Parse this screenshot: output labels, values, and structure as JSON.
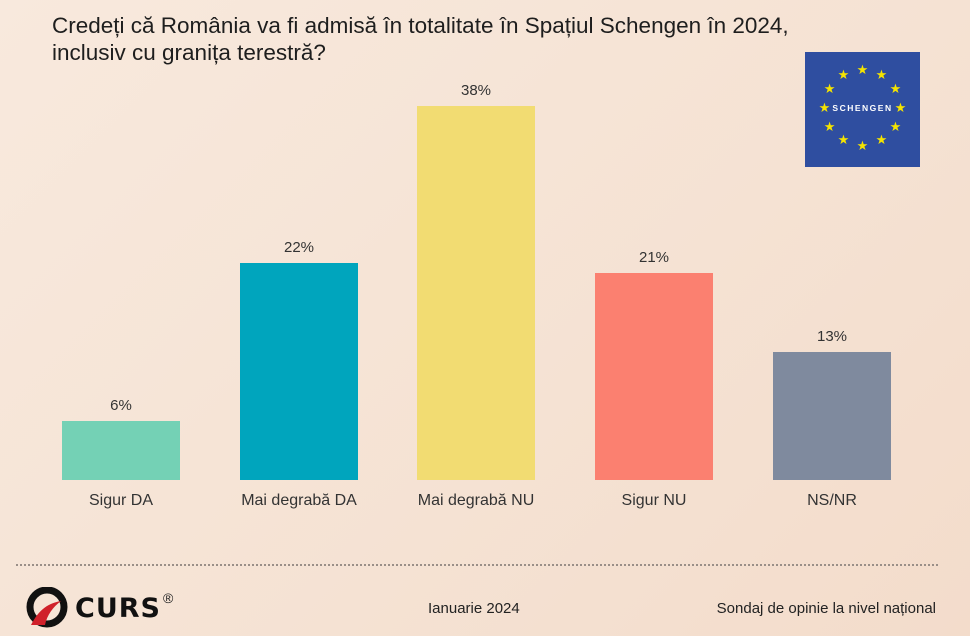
{
  "chart_data": {
    "type": "bar",
    "title": "Credeți că România va fi admisă în totalitate în Spațiul Schengen în 2024, inclusiv cu granița terestră?",
    "categories": [
      "Sigur DA",
      "Mai degrabă DA",
      "Mai degrabă NU",
      "Sigur NU",
      "NS/NR"
    ],
    "values": [
      6,
      22,
      38,
      21,
      13
    ],
    "data_labels": [
      "6%",
      "22%",
      "38%",
      "21%",
      "13%"
    ],
    "colors": [
      "#74d1b5",
      "#00a5bd",
      "#f2dc72",
      "#fb8070",
      "#7f8a9e"
    ],
    "xlabel": "",
    "ylabel": "",
    "ylim": [
      0,
      38
    ],
    "grid": false,
    "legend": "none"
  },
  "flag": {
    "label": "SCHENGEN",
    "icon": "eu-flag-stars"
  },
  "footer": {
    "logo": "CURS",
    "registered": "®",
    "date": "Ianuarie 2024",
    "source": "Sondaj de opinie la nivel național"
  }
}
